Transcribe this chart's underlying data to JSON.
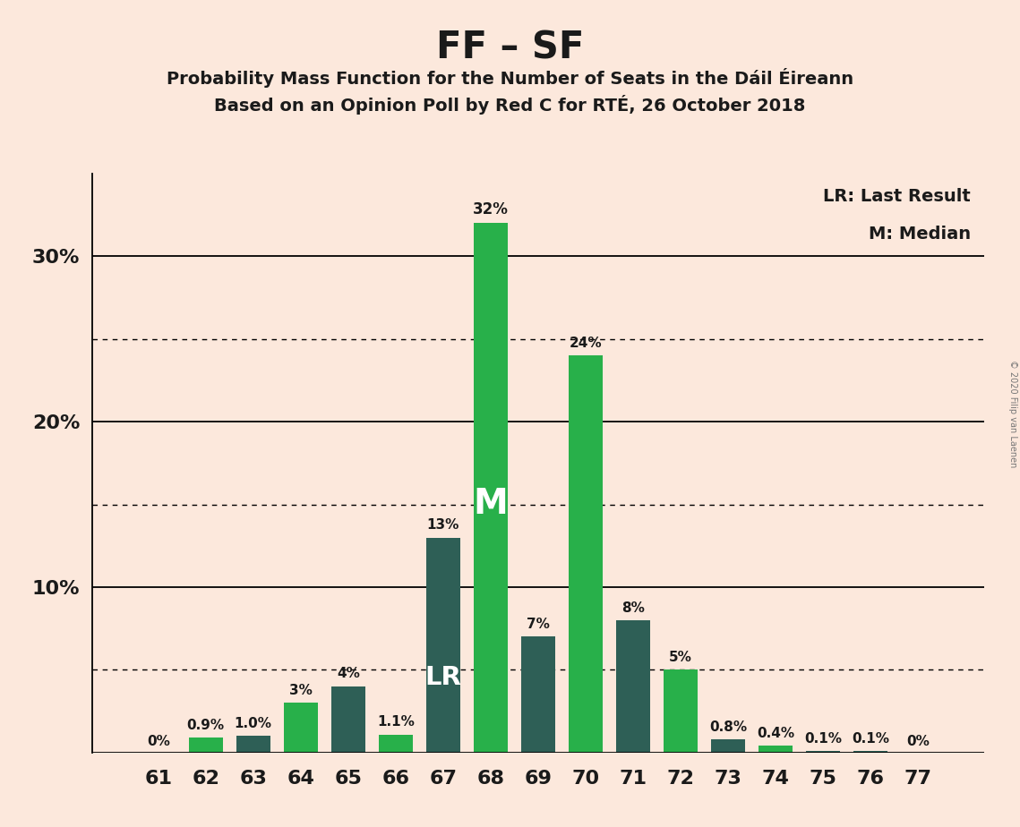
{
  "title": "FF – SF",
  "subtitle1": "Probability Mass Function for the Number of Seats in the Dáil Éireann",
  "subtitle2": "Based on an Opinion Poll by Red C for RTÉ, 26 October 2018",
  "copyright": "© 2020 Filip van Laenen",
  "seats": [
    61,
    62,
    63,
    64,
    65,
    66,
    67,
    68,
    69,
    70,
    71,
    72,
    73,
    74,
    75,
    76,
    77
  ],
  "values": [
    0.0,
    0.9,
    1.0,
    3.0,
    4.0,
    1.1,
    13.0,
    32.0,
    7.0,
    24.0,
    8.0,
    5.0,
    0.8,
    0.4,
    0.1,
    0.1,
    0.0
  ],
  "labels": [
    "0%",
    "0.9%",
    "1.0%",
    "3%",
    "4%",
    "1.1%",
    "13%",
    "32%",
    "7%",
    "24%",
    "8%",
    "5%",
    "0.8%",
    "0.4%",
    "0.1%",
    "0.1%",
    "0%"
  ],
  "colors": [
    "#28b04a",
    "#28b04a",
    "#2e5f56",
    "#28b04a",
    "#2e5f56",
    "#28b04a",
    "#2e5f56",
    "#28b04a",
    "#2e5f56",
    "#28b04a",
    "#2e5f56",
    "#28b04a",
    "#2e5f56",
    "#28b04a",
    "#2e5f56",
    "#2e5f56",
    "#2e5f56"
  ],
  "lr_seat": 67,
  "median_seat": 68,
  "background_color": "#fce8dc",
  "ylim_max": 35,
  "solid_gridlines": [
    10,
    20,
    30
  ],
  "dotted_gridlines": [
    5,
    15,
    25
  ],
  "legend_lr": "LR: Last Result",
  "legend_m": "M: Median",
  "bar_label_color": "#1a1a1a",
  "bar_in_label_color": "#ffffff",
  "title_fontsize": 30,
  "subtitle_fontsize": 14,
  "tick_fontsize": 16,
  "label_fontsize": 11,
  "legend_fontsize": 14,
  "bar_width": 0.72
}
